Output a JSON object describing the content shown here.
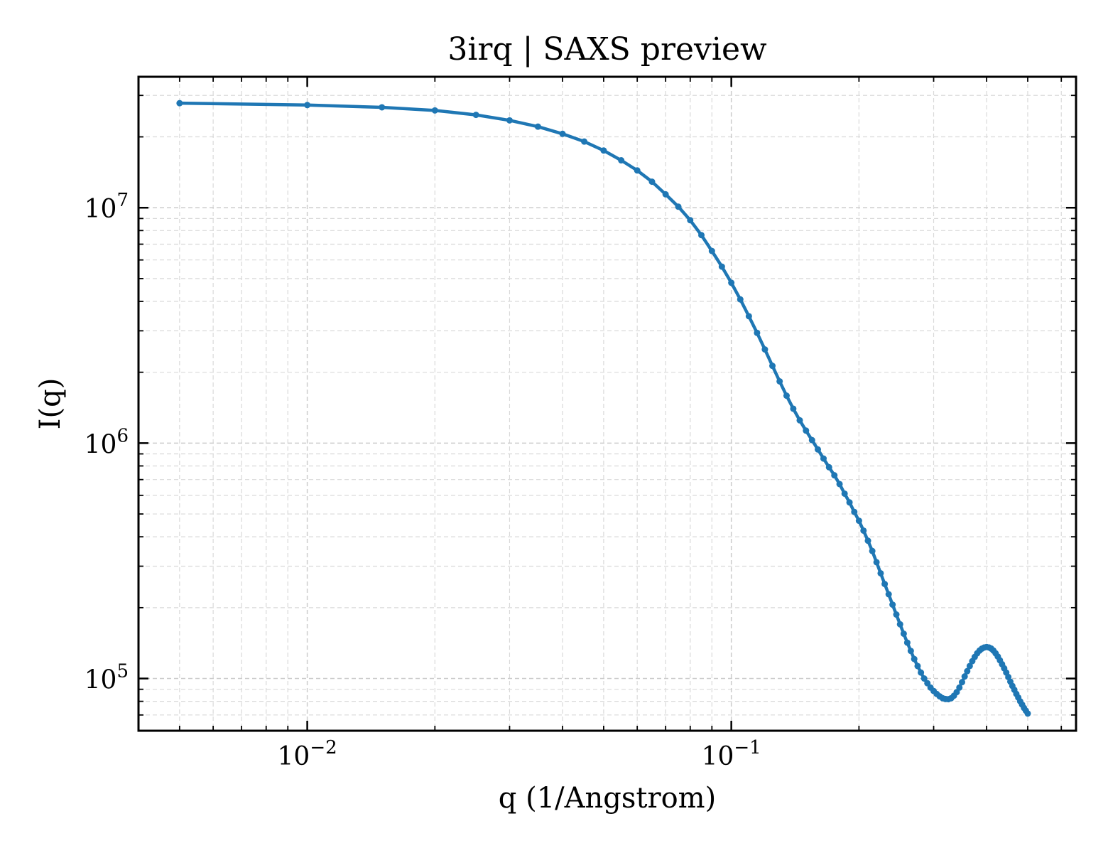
{
  "chart_data": {
    "type": "line",
    "title": "3irq | SAXS preview",
    "xlabel": "q (1/Angstrom)",
    "ylabel": "I(q)",
    "xscale": "log",
    "yscale": "log",
    "xlim": [
      0.004,
      0.65
    ],
    "ylim": [
      60000,
      36000000
    ],
    "grid": true,
    "legend": "none",
    "x_ticks": [
      {
        "base": "10",
        "exp": "−2",
        "value": 0.01
      },
      {
        "base": "10",
        "exp": "−1",
        "value": 0.1
      }
    ],
    "y_ticks": [
      {
        "base": "10",
        "exp": "5",
        "value": 100000
      },
      {
        "base": "10",
        "exp": "6",
        "value": 1000000
      },
      {
        "base": "10",
        "exp": "7",
        "value": 10000000
      }
    ],
    "colors": {
      "line": "#1f77b4",
      "grid": "#d9d9d9",
      "axes": "#000000"
    },
    "series": [
      {
        "x": [
          0.005,
          0.01,
          0.015,
          0.02,
          0.025,
          0.03,
          0.035,
          0.04,
          0.045,
          0.05,
          0.055,
          0.06,
          0.065,
          0.07,
          0.075,
          0.08,
          0.085,
          0.09,
          0.095,
          0.1,
          0.105,
          0.11,
          0.115,
          0.12,
          0.125,
          0.13,
          0.135,
          0.14,
          0.145,
          0.15,
          0.155,
          0.16,
          0.165,
          0.17,
          0.175,
          0.18,
          0.185,
          0.19,
          0.195,
          0.2,
          0.205,
          0.21,
          0.215,
          0.22,
          0.225,
          0.23,
          0.235,
          0.24,
          0.245,
          0.25,
          0.255,
          0.26,
          0.265,
          0.27,
          0.275,
          0.28,
          0.285,
          0.29,
          0.295,
          0.3,
          0.305,
          0.31,
          0.315,
          0.32,
          0.325,
          0.33,
          0.335,
          0.34,
          0.345,
          0.35,
          0.355,
          0.36,
          0.365,
          0.37,
          0.375,
          0.38,
          0.385,
          0.39,
          0.395,
          0.4,
          0.405,
          0.41,
          0.415,
          0.42,
          0.425,
          0.43,
          0.435,
          0.44,
          0.445,
          0.45,
          0.455,
          0.46,
          0.465,
          0.47,
          0.475,
          0.48,
          0.485,
          0.49,
          0.495,
          0.5
        ],
        "y": [
          27800000,
          27300000,
          26700000,
          25900000,
          24800000,
          23500000,
          22100000,
          20600000,
          19100000,
          17500000,
          15900000,
          14400000,
          12900000,
          11400000,
          10100000,
          8850000,
          7650000,
          6550000,
          5620000,
          4800000,
          4080000,
          3460000,
          2940000,
          2500000,
          2130000,
          1830000,
          1590000,
          1400000,
          1250000,
          1130000,
          1030000,
          940000,
          860000,
          790000,
          730000,
          670000,
          610000,
          560000,
          510000,
          468000,
          425000,
          385000,
          348000,
          312000,
          280000,
          252000,
          228000,
          206000,
          187000,
          170000,
          155000,
          142000,
          131000,
          121000,
          113000,
          106000,
          100000,
          95500,
          91500,
          88500,
          86000,
          84000,
          82500,
          81800,
          81700,
          82500,
          84500,
          87500,
          91500,
          96500,
          102000,
          107500,
          113000,
          118500,
          123500,
          128000,
          131500,
          134000,
          135500,
          136000,
          135500,
          134000,
          131500,
          128000,
          124000,
          119500,
          115000,
          110500,
          106000,
          101500,
          97000,
          93000,
          89500,
          86000,
          83000,
          80000,
          77500,
          75000,
          73000,
          71000
        ]
      }
    ]
  }
}
